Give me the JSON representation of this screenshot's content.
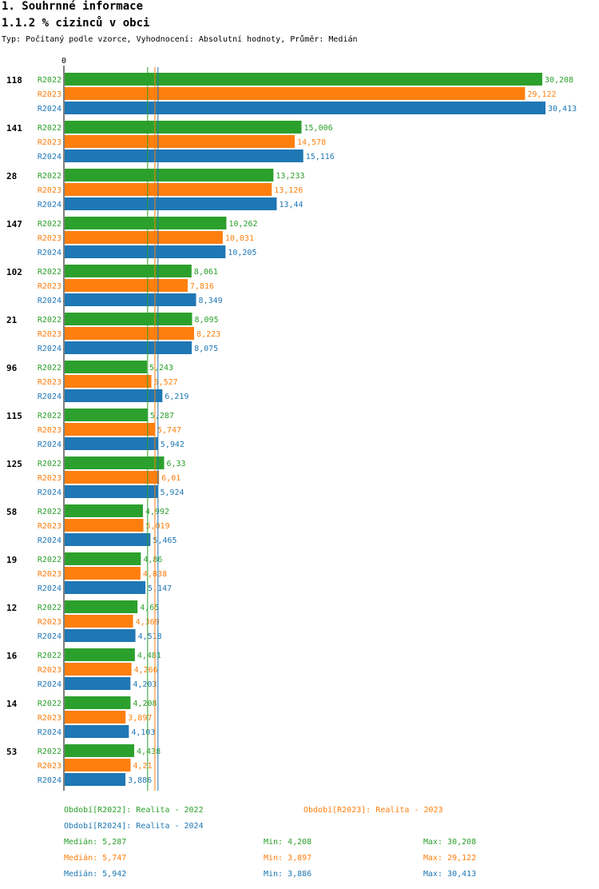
{
  "header": {
    "section": "1. Souhrnné informace",
    "title": "1.1.2 % cizinců v obci",
    "subtitle": "Typ: Počítaný podle vzorce, Vyhodnocení: Absolutní hodnoty, Průměr: Medián"
  },
  "colors": {
    "R2022": "#2ca02c",
    "R2023": "#ff7f0e",
    "R2024": "#1f77b4"
  },
  "chart_data": {
    "type": "bar",
    "orientation": "horizontal",
    "axis_zero_label": "0",
    "xlim": [
      0,
      30.413
    ],
    "categories": [
      "118",
      "141",
      "28",
      "147",
      "102",
      "21",
      "96",
      "115",
      "125",
      "58",
      "19",
      "12",
      "16",
      "14",
      "53"
    ],
    "series": [
      {
        "name": "R2022",
        "values": [
          30.208,
          15.006,
          13.233,
          10.262,
          8.061,
          8.095,
          5.243,
          5.287,
          6.33,
          4.992,
          4.86,
          4.65,
          4.481,
          4.208,
          4.438
        ],
        "labels": [
          "30,208",
          "15,006",
          "13,233",
          "10,262",
          "8,061",
          "8,095",
          "5,243",
          "5,287",
          "6,33",
          "4,992",
          "4,86",
          "4,65",
          "4,481",
          "4,208",
          "4,438"
        ]
      },
      {
        "name": "R2023",
        "values": [
          29.122,
          14.578,
          13.126,
          10.031,
          7.816,
          8.223,
          5.527,
          5.747,
          6.01,
          5.019,
          4.838,
          4.369,
          4.266,
          3.897,
          4.21
        ],
        "labels": [
          "29,122",
          "14,578",
          "13,126",
          "10,031",
          "7,816",
          "8,223",
          "5,527",
          "5,747",
          "6,01",
          "5,019",
          "4,838",
          "4,369",
          "4,266",
          "3,897",
          "4,21"
        ]
      },
      {
        "name": "R2024",
        "values": [
          30.413,
          15.116,
          13.44,
          10.205,
          8.349,
          8.075,
          6.219,
          5.942,
          5.924,
          5.465,
          5.147,
          4.518,
          4.203,
          4.103,
          3.886
        ],
        "labels": [
          "30,413",
          "15,116",
          "13,44",
          "10,205",
          "8,349",
          "8,075",
          "6,219",
          "5,942",
          "5,924",
          "5,465",
          "5,147",
          "4,518",
          "4,203",
          "4,103",
          "3,886"
        ]
      }
    ],
    "median_lines": [
      {
        "series": "R2022",
        "value": 5.287
      },
      {
        "series": "R2023",
        "value": 5.747
      },
      {
        "series": "R2024",
        "value": 5.942
      }
    ]
  },
  "legend": {
    "periods": [
      {
        "series": "R2022",
        "text": "Období[R2022]: Realita - 2022"
      },
      {
        "series": "R2023",
        "text": "Období[R2023]: Realita - 2023"
      },
      {
        "series": "R2024",
        "text": "Období[R2024]: Realita - 2024"
      }
    ],
    "stats": [
      {
        "series": "R2022",
        "median": "Medián: 5,287",
        "min": "Min: 4,208",
        "max": "Max: 30,208"
      },
      {
        "series": "R2023",
        "median": "Medián: 5,747",
        "min": "Min: 3,897",
        "max": "Max: 29,122"
      },
      {
        "series": "R2024",
        "median": "Medián: 5,942",
        "min": "Min: 3,886",
        "max": "Max: 30,413"
      }
    ]
  }
}
